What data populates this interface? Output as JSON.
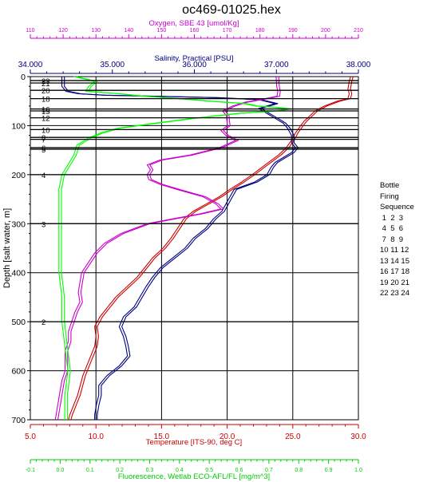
{
  "chart_data": {
    "type": "line",
    "title": "oc469-01025.hex",
    "ylabel": "Depth [salt water, m]",
    "ylim": [
      0,
      700
    ],
    "yticks": [
      "0",
      "100",
      "200",
      "300",
      "400",
      "500",
      "600",
      "700"
    ],
    "grid": true,
    "axes": {
      "oxygen": {
        "label": "Oxygen, SBE 43 [umol/Kg]",
        "range": [
          110,
          210
        ],
        "position": "top",
        "ticks": [
          "110",
          "120",
          "130",
          "140",
          "150",
          "160",
          "170",
          "180",
          "190",
          "200",
          "210"
        ],
        "color": "#cc00cc"
      },
      "salinity": {
        "label": "Salinity, Practical [PSU]",
        "range": [
          34.0,
          38.0
        ],
        "position": "top",
        "ticks": [
          "34.000",
          "35.000",
          "36.000",
          "37.000",
          "38.000"
        ],
        "color": "#000080"
      },
      "temperature": {
        "label": "Temperature [ITS-90, deg C]",
        "range": [
          5.0,
          30.0
        ],
        "position": "bottom",
        "ticks": [
          "5.0",
          "10.0",
          "15.0",
          "20.0",
          "25.0",
          "30.0"
        ],
        "color": "#cc0000"
      },
      "fluorescence": {
        "label": "Fluorescence, Wetlab ECO-AFL/FL [mg/m^3]",
        "range": [
          -0.1,
          1.0
        ],
        "position": "bottom",
        "ticks": [
          "-0.1",
          "0.0",
          "0.1",
          "0.2",
          "0.3",
          "0.4",
          "0.5",
          "0.6",
          "0.7",
          "0.8",
          "0.9",
          "1.0"
        ],
        "color": "#00cc00"
      }
    },
    "bottles": [
      {
        "label": "23",
        "depth": 8
      },
      {
        "label": "21",
        "depth": 13
      },
      {
        "label": "20",
        "depth": 28
      },
      {
        "label": "18",
        "depth": 45
      },
      {
        "label": "16",
        "depth": 66
      },
      {
        "label": "15",
        "depth": 70
      },
      {
        "label": "12",
        "depth": 84
      },
      {
        "label": "10",
        "depth": 108
      },
      {
        "label": "8",
        "depth": 124
      },
      {
        "label": "7",
        "depth": 128
      },
      {
        "label": "6",
        "depth": 145
      },
      {
        "label": "5",
        "depth": 148
      },
      {
        "label": "4",
        "depth": 200
      },
      {
        "label": "3",
        "depth": 300
      },
      {
        "label": "2",
        "depth": 500
      }
    ],
    "series": [
      {
        "axis": "temperature",
        "color": "#cc0000",
        "points": [
          [
            0,
            29.5
          ],
          [
            10,
            29.4
          ],
          [
            25,
            29.3
          ],
          [
            35,
            29.4
          ],
          [
            45,
            29.3
          ],
          [
            50,
            28.5
          ],
          [
            60,
            27.5
          ],
          [
            70,
            26.8
          ],
          [
            80,
            26.4
          ],
          [
            90,
            26.0
          ],
          [
            100,
            25.7
          ],
          [
            115,
            25.3
          ],
          [
            130,
            25.0
          ],
          [
            145,
            24.6
          ],
          [
            160,
            24.0
          ],
          [
            180,
            23.0
          ],
          [
            200,
            22.0
          ],
          [
            215,
            21.2
          ],
          [
            230,
            20.3
          ],
          [
            245,
            19.5
          ],
          [
            260,
            18.5
          ],
          [
            275,
            17.5
          ],
          [
            290,
            16.8
          ],
          [
            310,
            16.3
          ],
          [
            330,
            15.8
          ],
          [
            350,
            15.2
          ],
          [
            370,
            14.4
          ],
          [
            390,
            13.8
          ],
          [
            410,
            13.2
          ],
          [
            430,
            12.4
          ],
          [
            450,
            11.6
          ],
          [
            470,
            11.0
          ],
          [
            490,
            10.4
          ],
          [
            510,
            10.0
          ],
          [
            530,
            10.1
          ],
          [
            550,
            10.0
          ],
          [
            570,
            9.7
          ],
          [
            590,
            9.4
          ],
          [
            610,
            9.1
          ],
          [
            630,
            8.9
          ],
          [
            650,
            8.7
          ],
          [
            670,
            8.4
          ],
          [
            690,
            8.1
          ],
          [
            700,
            8.0
          ]
        ]
      },
      {
        "axis": "salinity",
        "color": "#000080",
        "points": [
          [
            0,
            34.4
          ],
          [
            10,
            34.4
          ],
          [
            20,
            34.4
          ],
          [
            30,
            34.45
          ],
          [
            35,
            34.6
          ],
          [
            38,
            34.9
          ],
          [
            40,
            35.5
          ],
          [
            43,
            36.3
          ],
          [
            47,
            36.8
          ],
          [
            55,
            37.0
          ],
          [
            65,
            36.8
          ],
          [
            75,
            36.9
          ],
          [
            85,
            37.0
          ],
          [
            95,
            37.1
          ],
          [
            105,
            37.15
          ],
          [
            120,
            37.2
          ],
          [
            135,
            37.2
          ],
          [
            145,
            37.25
          ],
          [
            155,
            37.2
          ],
          [
            165,
            37.1
          ],
          [
            175,
            37.0
          ],
          [
            185,
            36.95
          ],
          [
            200,
            36.9
          ],
          [
            215,
            36.75
          ],
          [
            230,
            36.5
          ],
          [
            245,
            36.45
          ],
          [
            260,
            36.4
          ],
          [
            275,
            36.35
          ],
          [
            290,
            36.25
          ],
          [
            310,
            36.15
          ],
          [
            330,
            36.0
          ],
          [
            350,
            35.9
          ],
          [
            370,
            35.75
          ],
          [
            390,
            35.6
          ],
          [
            410,
            35.5
          ],
          [
            430,
            35.42
          ],
          [
            450,
            35.35
          ],
          [
            470,
            35.28
          ],
          [
            490,
            35.15
          ],
          [
            510,
            35.1
          ],
          [
            530,
            35.15
          ],
          [
            550,
            35.18
          ],
          [
            570,
            35.2
          ],
          [
            590,
            35.1
          ],
          [
            610,
            34.95
          ],
          [
            630,
            34.85
          ],
          [
            650,
            34.85
          ],
          [
            670,
            34.82
          ],
          [
            690,
            34.8
          ],
          [
            700,
            34.8
          ]
        ]
      },
      {
        "axis": "oxygen",
        "color": "#cc00cc",
        "points": [
          [
            0,
            185.3
          ],
          [
            10,
            185.4
          ],
          [
            20,
            185.5
          ],
          [
            30,
            185.8
          ],
          [
            40,
            185.6
          ],
          [
            45,
            182
          ],
          [
            52,
            176
          ],
          [
            60,
            172
          ],
          [
            70,
            169
          ],
          [
            80,
            170.2
          ],
          [
            90,
            170.3
          ],
          [
            100,
            170.5
          ],
          [
            110,
            168.5
          ],
          [
            120,
            170
          ],
          [
            130,
            173
          ],
          [
            145,
            168
          ],
          [
            160,
            159
          ],
          [
            170,
            150
          ],
          [
            180,
            146
          ],
          [
            190,
            147
          ],
          [
            200,
            146
          ],
          [
            210,
            146.5
          ],
          [
            220,
            150
          ],
          [
            230,
            155
          ],
          [
            245,
            163
          ],
          [
            260,
            167
          ],
          [
            270,
            168.5
          ],
          [
            280,
            162
          ],
          [
            290,
            154
          ],
          [
            300,
            146
          ],
          [
            320,
            138
          ],
          [
            340,
            133
          ],
          [
            360,
            130
          ],
          [
            380,
            128
          ],
          [
            400,
            126
          ],
          [
            420,
            125.5
          ],
          [
            440,
            125
          ],
          [
            460,
            125.5
          ],
          [
            480,
            124
          ],
          [
            500,
            123
          ],
          [
            520,
            122
          ],
          [
            540,
            122
          ],
          [
            560,
            121
          ],
          [
            580,
            121
          ],
          [
            600,
            121
          ],
          [
            620,
            120
          ],
          [
            640,
            119.5
          ],
          [
            660,
            119
          ],
          [
            680,
            118.5
          ],
          [
            700,
            118
          ]
        ]
      },
      {
        "axis": "fluorescence",
        "color": "#00ff00",
        "points": [
          [
            0,
            0.05
          ],
          [
            10,
            0.12
          ],
          [
            20,
            0.1
          ],
          [
            30,
            0.09
          ],
          [
            35,
            0.2
          ],
          [
            40,
            0.28
          ],
          [
            45,
            0.4
          ],
          [
            50,
            0.5
          ],
          [
            55,
            0.62
          ],
          [
            60,
            0.66
          ],
          [
            63,
            0.73
          ],
          [
            66,
            0.77
          ],
          [
            70,
            0.73
          ],
          [
            75,
            0.6
          ],
          [
            85,
            0.45
          ],
          [
            95,
            0.32
          ],
          [
            105,
            0.2
          ],
          [
            115,
            0.14
          ],
          [
            125,
            0.1
          ],
          [
            140,
            0.06
          ],
          [
            160,
            0.05
          ],
          [
            180,
            0.03
          ],
          [
            200,
            0.01
          ],
          [
            230,
            0.0
          ],
          [
            260,
            0.0
          ],
          [
            300,
            0.0
          ],
          [
            350,
            0.0
          ],
          [
            400,
            0.0
          ],
          [
            450,
            0.01
          ],
          [
            500,
            0.01
          ],
          [
            550,
            0.02
          ],
          [
            600,
            0.03
          ],
          [
            650,
            0.02
          ],
          [
            700,
            0.02
          ]
        ]
      }
    ],
    "annotation": {
      "title": "Bottle Firing Sequence",
      "lines": [
        "Bottle",
        "Firing",
        "Sequence",
        " 1  2  3",
        " 4  5  6",
        " 7  8  9",
        "10 11 12",
        "13 14 15",
        "16 17 18",
        "19 20 21",
        "22 23 24"
      ]
    }
  }
}
